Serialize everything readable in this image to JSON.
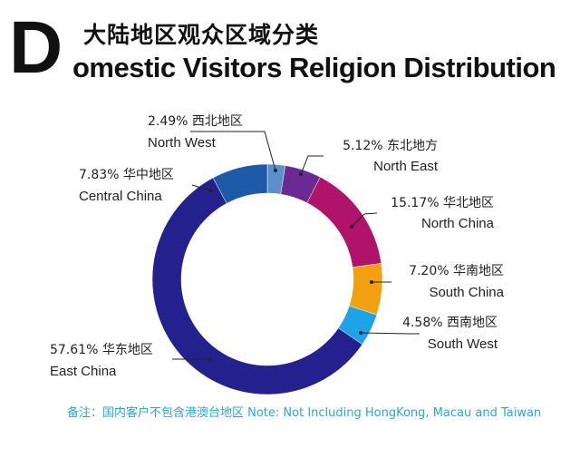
{
  "title": {
    "initial": "D",
    "cn": "大陆地区观众区域分类",
    "en": "omestic Visitors Religion Distribution"
  },
  "note": "备注：国内客户不包含港澳台地区  Note: Not Including HongKong, Macau and Taiwan",
  "chart_data": {
    "type": "pie",
    "title": "大陆地区观众区域分类 Domestic Visitors Religion Distribution",
    "slices": [
      {
        "pct": "2.49%",
        "cn": "西北地区",
        "en": "North West",
        "value": 2.49,
        "color": "#5b8fd0"
      },
      {
        "pct": "5.12%",
        "cn": "东北地方",
        "en": "North East",
        "value": 5.12,
        "color": "#6a2a92"
      },
      {
        "pct": "15.17%",
        "cn": "华北地区",
        "en": "North China",
        "value": 15.17,
        "color": "#b0146a"
      },
      {
        "pct": "7.20%",
        "cn": "华南地区",
        "en": "South China",
        "value": 7.2,
        "color": "#f0a010"
      },
      {
        "pct": "4.58%",
        "cn": "西南地区",
        "en": "South West",
        "value": 4.58,
        "color": "#1ea3e6"
      },
      {
        "pct": "57.61%",
        "cn": "华东地区",
        "en": "East China",
        "value": 57.61,
        "color": "#24218e"
      },
      {
        "pct": "7.83%",
        "cn": "华中地区",
        "en": "Central China",
        "value": 7.83,
        "color": "#1f5aa8"
      }
    ]
  }
}
